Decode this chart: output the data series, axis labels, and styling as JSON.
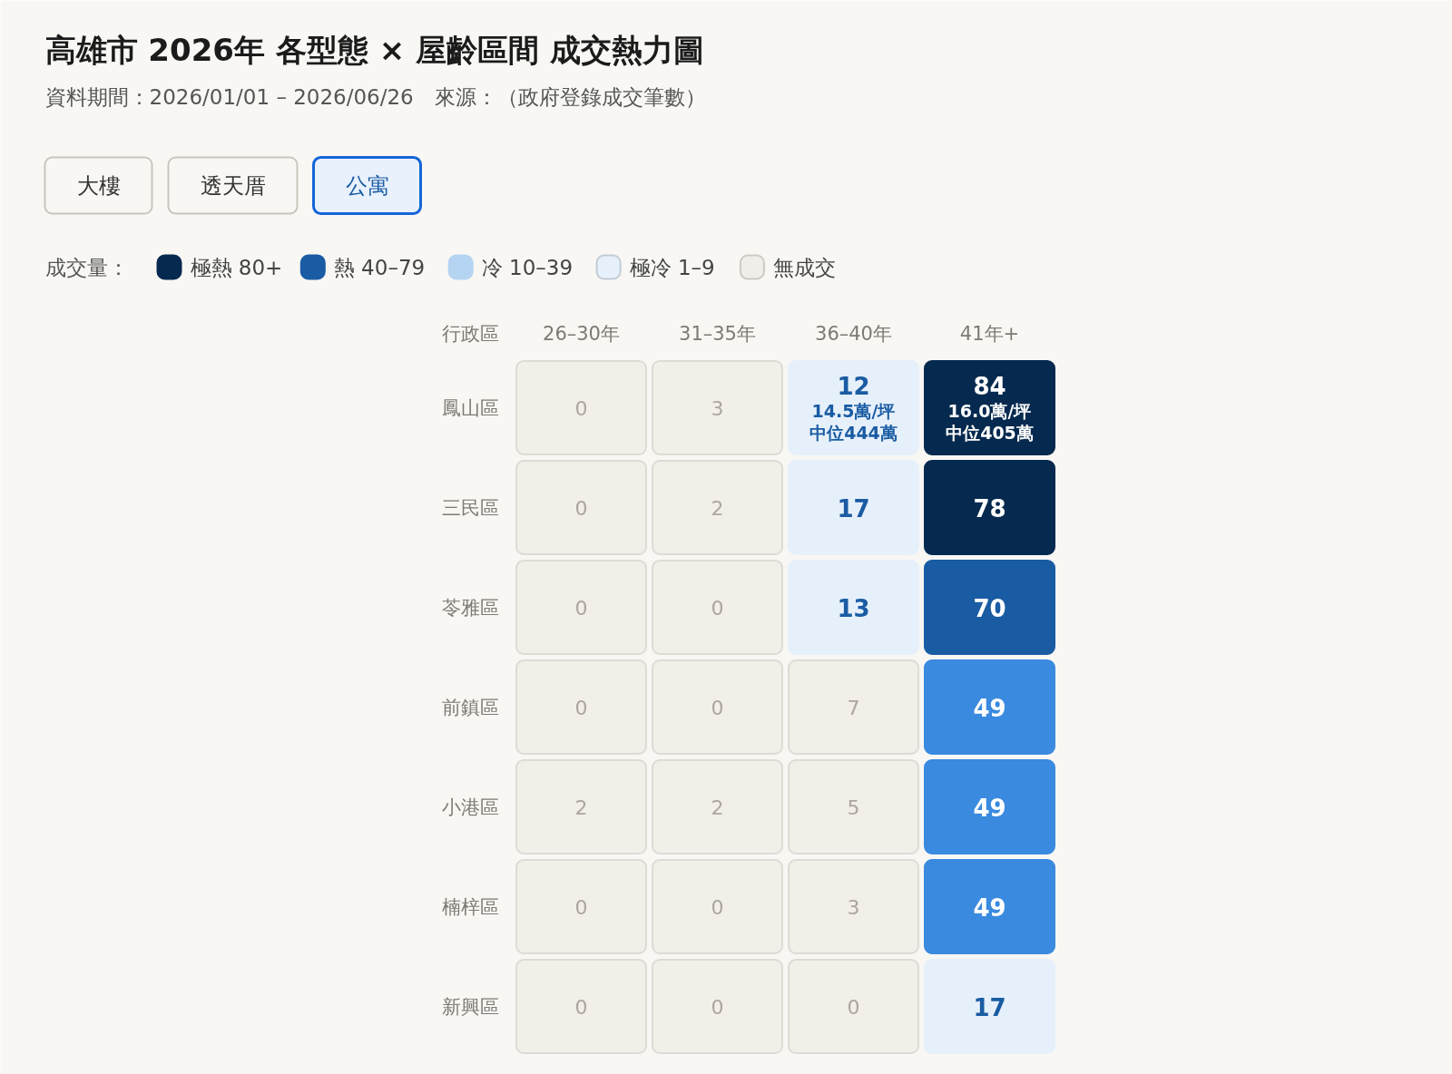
{
  "chart_data": {
    "type": "heatmap",
    "title": "高雄市 2026年 各型態 × 屋齡區間 成交熱力圖",
    "subtitle": "資料期間：2026/01/01 – 2026/06/26　來源：（政府登錄成交筆數）",
    "annotations": [
      "大樓",
      "透天厝",
      "公寓",
      "14.5萬/坪",
      "中位444萬",
      "16.0萬/坪",
      "中位405萬"
    ],
    "legend": "top left",
    "legend_title": "成交量：",
    "series": [
      {
        "name": "極熱 80+",
        "color": "#062a4f",
        "values": [
          null,
          null,
          null,
          null
        ]
      },
      {
        "name": "熱 40–79",
        "color": "#1a5ca3",
        "values": [
          null,
          null,
          null,
          null
        ]
      },
      {
        "name": "冷 10–39",
        "color": "#b5d4f2",
        "values": [
          null,
          null,
          null,
          null
        ]
      },
      {
        "name": "極冷 1–9",
        "color": "#e6f0fb",
        "values": [
          null,
          null,
          null,
          null
        ]
      },
      {
        "name": "無成交",
        "color": "#f0eee8",
        "values": [
          null,
          null,
          null,
          null
        ]
      }
    ],
    "ylabel": "行政區",
    "categories": [
      "26–30年",
      "31–35年",
      "36–40年",
      "41年+"
    ],
    "y_categories": [
      "鳳山區",
      "三民區",
      "苓雅區",
      "前鎮區",
      "小港區",
      "楠梓區",
      "新興區"
    ],
    "cells": [
      [
        0,
        3,
        12,
        84
      ],
      [
        0,
        2,
        17,
        78
      ],
      [
        0,
        0,
        13,
        70
      ],
      [
        0,
        0,
        7,
        49
      ],
      [
        2,
        2,
        5,
        49
      ],
      [
        0,
        0,
        3,
        49
      ],
      [
        0,
        0,
        0,
        17
      ]
    ],
    "colors": [
      [
        "#f2efe9",
        "#f2efe9",
        "#e6f0fb",
        "#062a4f"
      ],
      [
        "#f2efe9",
        "#f2efe9",
        "#e6f0fb",
        "#062a4f"
      ],
      [
        "#f2efe9",
        "#f2efe9",
        "#e6f0fb",
        "#1a5ca3"
      ],
      [
        "#f2efe9",
        "#f2efe9",
        "#f2efe9",
        "#3a8adf"
      ],
      [
        "#f2efe9",
        "#f2efe9",
        "#f2efe9",
        "#3a8adf"
      ],
      [
        "#f2efe9",
        "#f2efe9",
        "#f2efe9",
        "#3a8adf"
      ],
      [
        "#f2efe9",
        "#f2efe9",
        "#f2efe9",
        "#e6f0fb"
      ]
    ],
    "data_labels": true
  }
}
